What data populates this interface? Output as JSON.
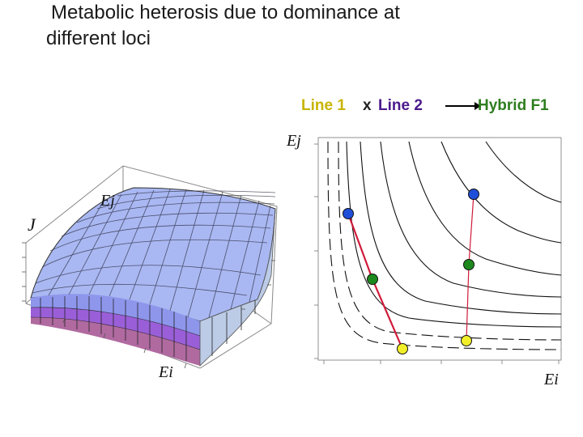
{
  "title": {
    "line1": "Metabolic heterosis due to dominance at",
    "line2": "different loci"
  },
  "legend": {
    "parent1": "Line 1",
    "cross": "x",
    "parent2": "Line 2",
    "hybrid": "Hybrid F1",
    "colors": {
      "parent1": "#c8b400",
      "cross": "#222222",
      "parent2": "#4b1a8c",
      "hybrid": "#2e7d1e"
    }
  },
  "surface_plot": {
    "label_z": "J",
    "label_back": "Ej",
    "label_front": "Ei"
  },
  "contour_plot": {
    "label_y": "Ej",
    "label_x": "Ei",
    "points": {
      "line1_start": "blue",
      "line1_mid": "green",
      "line1_end": "yellow",
      "line2_start": "blue",
      "line2_mid": "green",
      "line2_end": "yellow"
    },
    "colors": {
      "blue": "#1f4fd8",
      "green": "#1e8a1e",
      "yellow": "#f2ee2a",
      "connector": "#d11a3a"
    }
  }
}
